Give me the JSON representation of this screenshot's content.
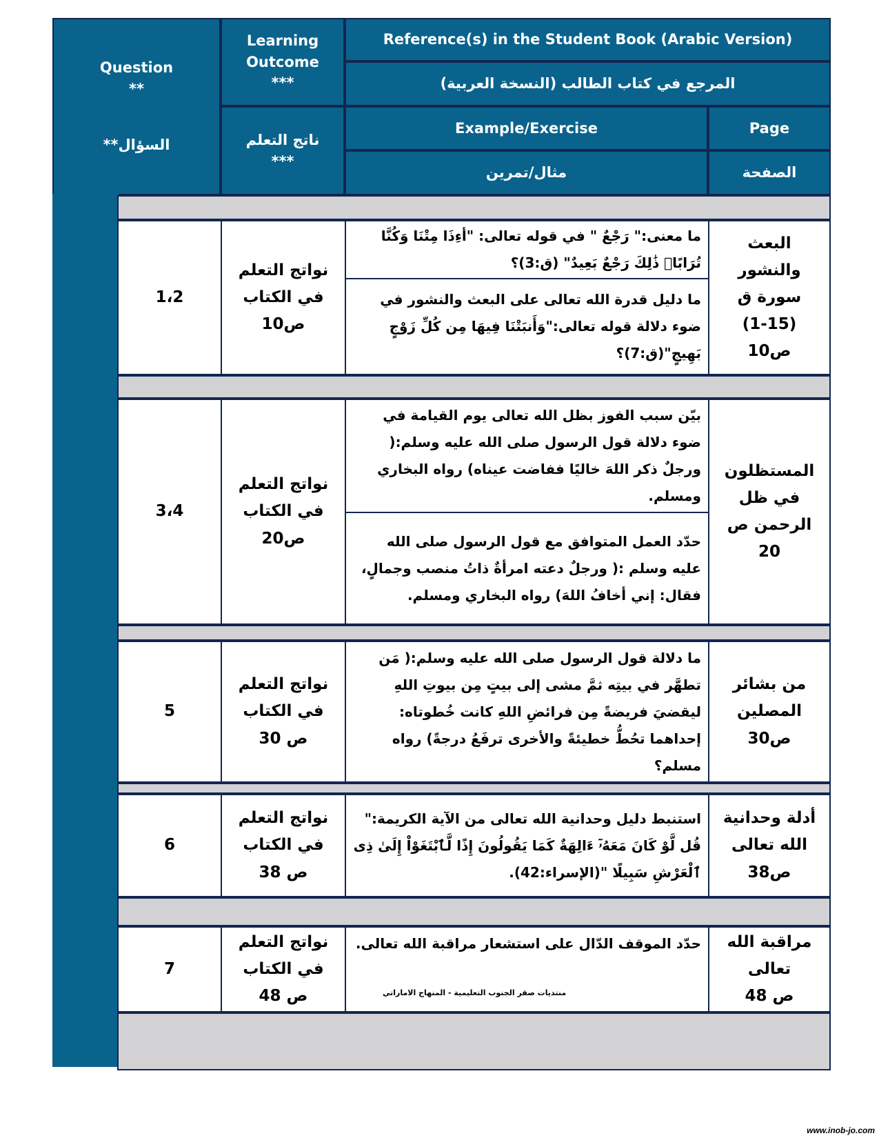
{
  "header": {
    "question_en": "Question",
    "question_stars": "**",
    "question_ar": "السؤال**",
    "lo_en_1": "Learning",
    "lo_en_2": "Outcome",
    "lo_stars": "***",
    "lo_ar": "ناتج التعلم",
    "reference_en": "Reference(s) in the Student Book (Arabic Version)",
    "reference_ar": "المرجع في كتاب الطالب (النسخة العربية)",
    "example_en": "Example/Exercise",
    "example_ar": "مثال/تمرين",
    "page_en": "Page",
    "page_ar": "الصفحة"
  },
  "rows": [
    {
      "question": "1،2",
      "outcome": [
        "نواتج التعلم",
        "في الكتاب",
        "ص10"
      ],
      "examples": [
        "ما معنى:\" رَجْعٌ \" في قوله تعالى: \"أءِذَا مِتْنَا وَكُنَّا تُرَابًاۖ ذَٰلِكَ رَجْعٌ بَعِيدٌ\" (ق:3)؟",
        "ما دليل قدرة الله تعالى على البعث والنشور في ضوء دلالة قوله تعالى:\"وَأَنبَتْنَا فِيهَا مِن كُلِّ زَوْجٍ بَهِيجٍ\"(ق:7)؟"
      ],
      "page": [
        "البعث",
        "والنشور",
        "سورة ق",
        "(1-15)",
        "ص10"
      ]
    },
    {
      "question": "3،4",
      "outcome": [
        "نواتج التعلم",
        "في الكتاب",
        "ص20"
      ],
      "examples": [
        "بيّن سبب الفوز بظل الله تعالى يوم القيامة في ضوء دلالة قول الرسول صلى الله عليه وسلم:( ورجلٌ ذكر اللهَ خاليًا ففاضت عيناه) رواه البخاري ومسلم.",
        "حدّد العمل المتوافق مع قول الرسول صلى الله عليه وسلم :( ورجلٌ دعته امرأةٌ ذاتُ منصب وجمالٍ، فقال: إني أخافُ اللهَ) رواه البخاري ومسلم."
      ],
      "page": [
        "المستظلون",
        "في ظل",
        "الرحمن   ص",
        "20"
      ]
    },
    {
      "question": "5",
      "outcome": [
        "نواتج التعلم",
        "في الكتاب",
        "ص 30"
      ],
      "examples": [
        "ما دلالة قول الرسول صلى الله عليه وسلم:( مَن تطهَّر في بيتِه ثمَّ مشى إلى بيتٍ مِن بيوتِ اللهِ ليقضيَ فريضةً مِن فرائضِ اللهِ كانت خُطوتاه: إحداهما تحُطُّ خطيئةً والأخرى ترفَعُ درجةً) رواه مسلم؟"
      ],
      "page": [
        "من بشائر",
        "المصلين",
        "ص30"
      ]
    },
    {
      "question": "6",
      "outcome": [
        "نواتج التعلم",
        "في الكتاب",
        "ص 38"
      ],
      "examples": [
        "استنبط دليل وحدانية الله تعالى من الآية الكريمة:\" قُل لَّوْ كَانَ مَعَهُۥٓ ءَالِهَةٌ كَمَا يَقُولُونَ إِذًا لَّٱبْتَغَوْاْ إِلَىٰ ذِى ٱلْعَرْشِ سَبِيلًا \"(الإسراء:42)."
      ],
      "page": [
        "أدلة وحدانية",
        "الله تعالى",
        "ص38"
      ]
    },
    {
      "question": "7",
      "outcome": [
        "نواتج التعلم",
        "في الكتاب",
        "ص 48"
      ],
      "examples": [
        "حدّد الموقف الدّال على استشعار مراقبة الله تعالى."
      ],
      "page": [
        "مراقبة الله",
        "تعالى",
        "ص 48"
      ]
    }
  ],
  "watermark_note": "منتديات صقر الجنوب التعليمية - المنهاج الاماراتي",
  "footer_url": "www.inob-jo.com",
  "colors": {
    "header": "#0a638c",
    "border": "#12264f",
    "band": "#d2d1d3"
  }
}
